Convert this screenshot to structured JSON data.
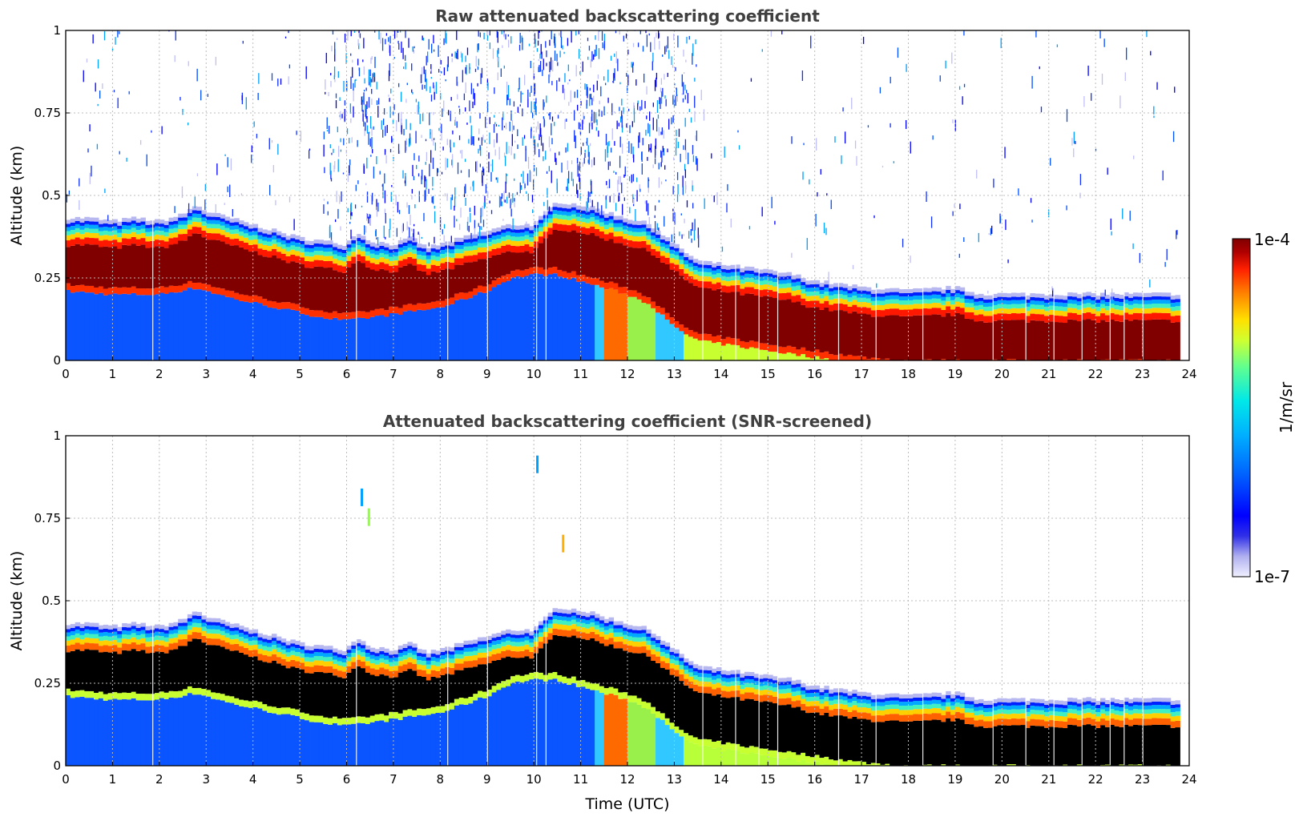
{
  "chart_data": [
    {
      "type": "heatmap",
      "title": "Raw attenuated backscattering coefficient",
      "xlabel": "",
      "ylabel": "Altitude (km)",
      "xlim": [
        0,
        24
      ],
      "ylim": [
        0,
        1
      ],
      "xticks": [
        "0",
        "1",
        "2",
        "3",
        "4",
        "5",
        "6",
        "7",
        "8",
        "9",
        "10",
        "11",
        "12",
        "13",
        "14",
        "15",
        "16",
        "17",
        "18",
        "19",
        "20",
        "21",
        "22",
        "23",
        "24"
      ],
      "yticks": [
        "0",
        "0.25",
        "0.5",
        "0.75",
        "1"
      ],
      "grid": true,
      "layer_top_km": [
        [
          0,
          0.42
        ],
        [
          0.5,
          0.42
        ],
        [
          1,
          0.41
        ],
        [
          1.5,
          0.42
        ],
        [
          2,
          0.41
        ],
        [
          2.5,
          0.43
        ],
        [
          2.8,
          0.46
        ],
        [
          3,
          0.44
        ],
        [
          3.5,
          0.42
        ],
        [
          4,
          0.4
        ],
        [
          4.5,
          0.38
        ],
        [
          5,
          0.36
        ],
        [
          5.5,
          0.35
        ],
        [
          6,
          0.34
        ],
        [
          6.2,
          0.38
        ],
        [
          6.5,
          0.35
        ],
        [
          7,
          0.34
        ],
        [
          7.4,
          0.36
        ],
        [
          7.7,
          0.33
        ],
        [
          8,
          0.34
        ],
        [
          8.5,
          0.36
        ],
        [
          9,
          0.38
        ],
        [
          9.5,
          0.4
        ],
        [
          10,
          0.4
        ],
        [
          10.5,
          0.47
        ],
        [
          11,
          0.46
        ],
        [
          11.5,
          0.44
        ],
        [
          12,
          0.42
        ],
        [
          12.5,
          0.4
        ],
        [
          13,
          0.34
        ],
        [
          13.5,
          0.29
        ],
        [
          14,
          0.28
        ],
        [
          14.5,
          0.27
        ],
        [
          15,
          0.26
        ],
        [
          15.5,
          0.25
        ],
        [
          16,
          0.23
        ],
        [
          16.5,
          0.22
        ],
        [
          17,
          0.21
        ],
        [
          18,
          0.2
        ],
        [
          19,
          0.21
        ],
        [
          19.5,
          0.19
        ],
        [
          20,
          0.19
        ],
        [
          21,
          0.19
        ],
        [
          22,
          0.19
        ],
        [
          23,
          0.19
        ],
        [
          23.7,
          0.19
        ]
      ],
      "layer_bottom_km": [
        [
          0,
          0.23
        ],
        [
          1,
          0.22
        ],
        [
          2,
          0.22
        ],
        [
          2.8,
          0.24
        ],
        [
          3.5,
          0.21
        ],
        [
          4.5,
          0.18
        ],
        [
          5.5,
          0.15
        ],
        [
          6,
          0.14
        ],
        [
          7,
          0.16
        ],
        [
          8,
          0.18
        ],
        [
          9,
          0.23
        ],
        [
          9.5,
          0.27
        ],
        [
          10,
          0.28
        ],
        [
          10.5,
          0.28
        ],
        [
          11,
          0.26
        ],
        [
          11.5,
          0.24
        ],
        [
          12,
          0.22
        ],
        [
          12.5,
          0.19
        ],
        [
          13,
          0.12
        ],
        [
          13.5,
          0.08
        ],
        [
          14,
          0.07
        ],
        [
          15,
          0.05
        ],
        [
          16,
          0.03
        ],
        [
          17,
          0.01
        ],
        [
          18,
          0.0
        ],
        [
          24,
          0.0
        ]
      ],
      "noise_extent_hours": [
        5.5,
        13.5
      ],
      "data_end_hour": 23.75
    },
    {
      "type": "heatmap",
      "title": "Attenuated backscattering coefficient (SNR-screened)",
      "xlabel": "Time (UTC)",
      "ylabel": "Altitude (km)",
      "xlim": [
        0,
        24
      ],
      "ylim": [
        0,
        1
      ],
      "xticks": [
        "0",
        "1",
        "2",
        "3",
        "4",
        "5",
        "6",
        "7",
        "8",
        "9",
        "10",
        "11",
        "12",
        "13",
        "14",
        "15",
        "16",
        "17",
        "18",
        "19",
        "20",
        "21",
        "22",
        "23",
        "24"
      ],
      "yticks": [
        "0",
        "0.25",
        "0.5",
        "0.75",
        "1"
      ],
      "grid": true,
      "screened_values_color": "#000000",
      "data_end_hour": 23.75
    }
  ],
  "colorbar": {
    "label": "1/m/sr",
    "max_label": "1e-4",
    "min_label": "1e-7",
    "colors": [
      "#e8e8f8",
      "#c8c8f4",
      "#a0a0ee",
      "#6060e8",
      "#2020e0",
      "#0000ff",
      "#0040ff",
      "#0070ff",
      "#00a0ff",
      "#00d0ff",
      "#20f0e0",
      "#60ff a0",
      "#a0ff60",
      "#e0ff20",
      "#ffd000",
      "#ff9000",
      "#ff5000",
      "#e01000",
      "#b00000",
      "#800000"
    ]
  }
}
